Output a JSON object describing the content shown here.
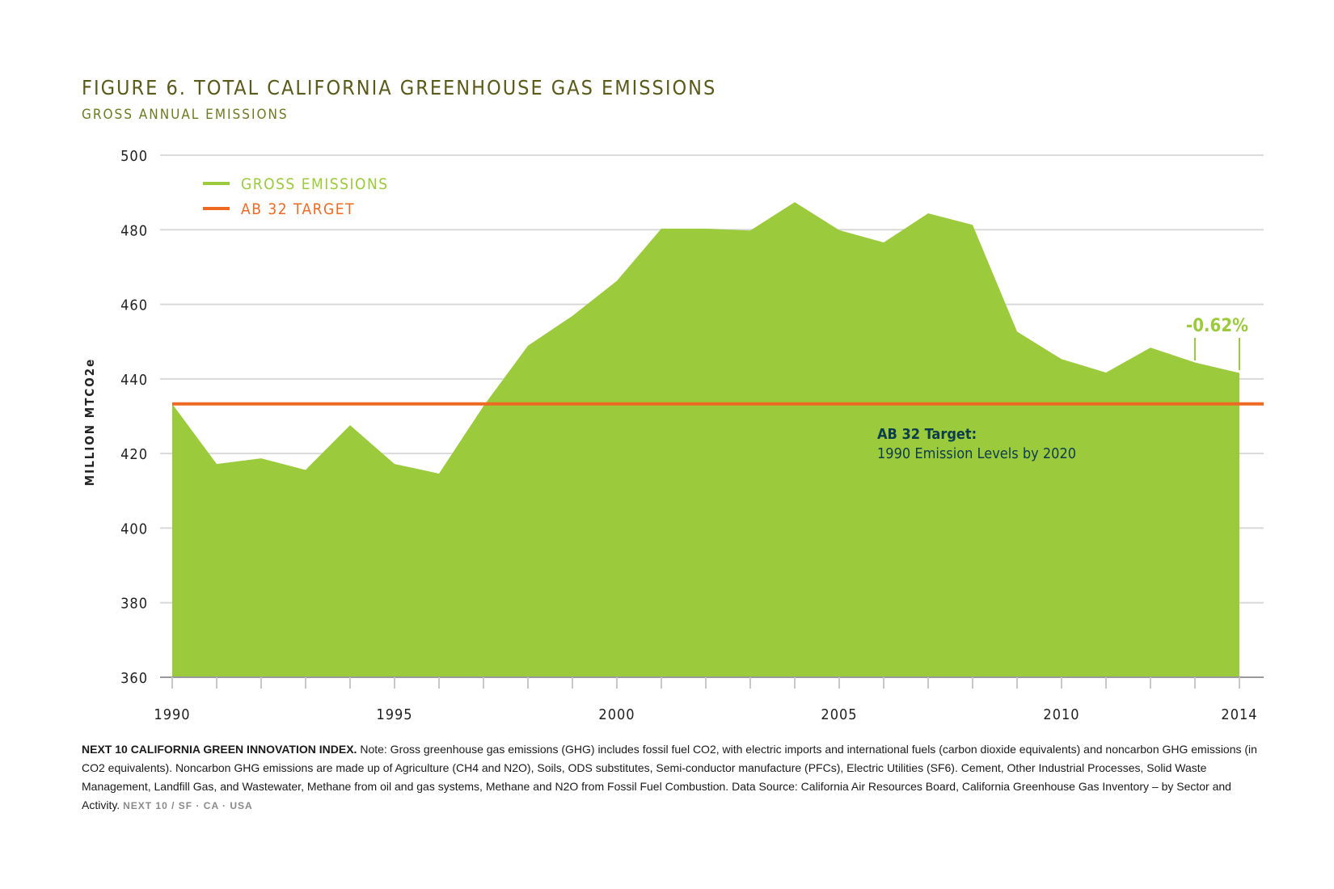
{
  "header": {
    "title": "FIGURE 6. TOTAL CALIFORNIA GREENHOUSE GAS EMISSIONS",
    "subtitle": "GROSS ANNUAL EMISSIONS"
  },
  "chart_data": {
    "type": "area",
    "title": "FIGURE 6. TOTAL CALIFORNIA GREENHOUSE GAS EMISSIONS",
    "subtitle": "GROSS ANNUAL EMISSIONS",
    "ylabel": "MILLION MTCO2e",
    "xlabel": "",
    "ylim": [
      360,
      500
    ],
    "xlim": [
      1990,
      2014
    ],
    "yticks": [
      360,
      380,
      400,
      420,
      440,
      460,
      480,
      500
    ],
    "xticks": [
      1990,
      1995,
      2000,
      2005,
      2010,
      2014
    ],
    "grid": true,
    "legend_position": "top-left",
    "legend": [
      {
        "label": "GROSS EMISSIONS",
        "color": "#9bca3c"
      },
      {
        "label": "AB 32 TARGET",
        "color": "#ee6a23"
      }
    ],
    "series": [
      {
        "name": "GROSS EMISSIONS",
        "color": "#9bca3c",
        "x": [
          1990,
          1991,
          1992,
          1993,
          1994,
          1995,
          1996,
          1997,
          1998,
          1999,
          2000,
          2001,
          2002,
          2003,
          2004,
          2005,
          2006,
          2007,
          2008,
          2009,
          2010,
          2011,
          2012,
          2013,
          2014
        ],
        "values": [
          433.3,
          417.2,
          418.7,
          415.6,
          427.6,
          417.2,
          414.6,
          432.7,
          448.9,
          456.9,
          466.3,
          480.3,
          480.3,
          479.8,
          487.4,
          479.9,
          476.6,
          484.4,
          481.3,
          452.7,
          445.3,
          441.7,
          448.4,
          444.4,
          441.6
        ]
      }
    ],
    "reference_line": {
      "name": "AB 32 TARGET",
      "value": 433.3,
      "color": "#ee6a23"
    },
    "annotations": {
      "change_label": "-0.62%",
      "change_from_year": 2013,
      "change_to_year": 2014,
      "target_heading": "AB 32 Target:",
      "target_text": "1990 Emission Levels by 2020"
    }
  },
  "footnote": {
    "lead": "NEXT 10 CALIFORNIA GREEN INNOVATION INDEX.",
    "body": " Note: Gross greenhouse gas emissions (GHG) includes fossil fuel CO2, with electric imports and international fuels (carbon dioxide equivalents) and noncarbon GHG emissions (in CO2 equivalents). Noncarbon GHG emissions are made up of Agriculture (CH4 and N2O), Soils, ODS substitutes, Semi-conductor manufacture (PFCs), Electric Utilities (SF6). Cement, Other Industrial Processes, Solid Waste Management, Landfill Gas, and Wastewater, Methane from oil and gas systems, Methane and N2O from Fossil Fuel Combustion. Data Source: California Air Resources Board, California Greenhouse Gas Inventory – by Sector and Activity.",
    "brand": "NEXT 10 / SF · CA · USA"
  }
}
